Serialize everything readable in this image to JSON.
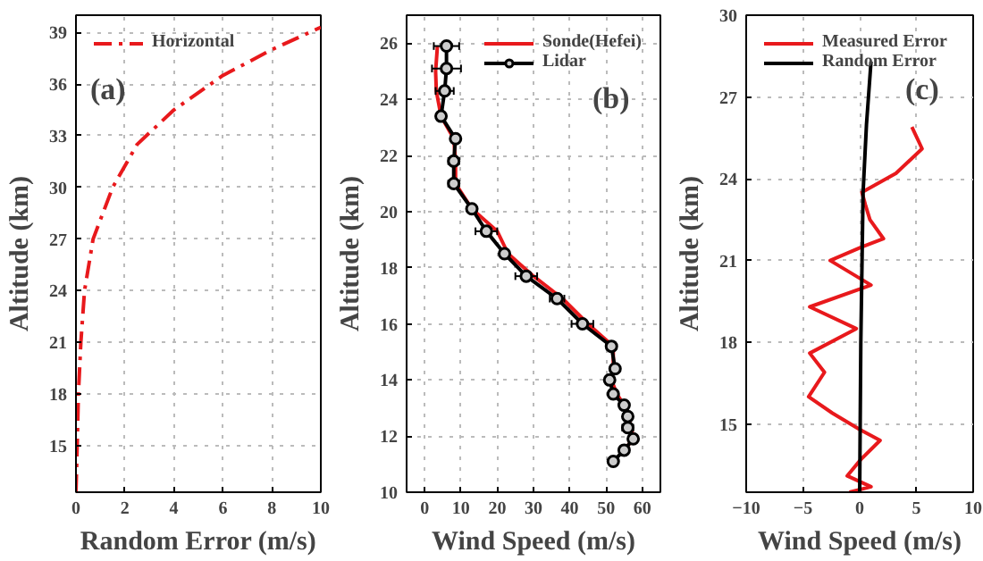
{
  "chart_data": [
    {
      "type": "line",
      "xlabel": "Random Error (m/s)",
      "ylabel": "Altitude (km)",
      "annotations": [
        "(a)"
      ],
      "xlim": [
        0,
        10
      ],
      "ylim": [
        12.3,
        40
      ],
      "xticks": [
        0,
        2,
        4,
        6,
        8,
        10
      ],
      "yticks": [
        15,
        18,
        21,
        24,
        27,
        30,
        33,
        36,
        39
      ],
      "grid": true,
      "legend": "top left",
      "line_style": "dashed",
      "series": [
        {
          "name": "Horizontal",
          "color": "#e8191c",
          "x": [
            0,
            0.05,
            0.1,
            0.2,
            0.35,
            0.7,
            1.5,
            2.5,
            4,
            6,
            8,
            10
          ],
          "values": [
            12.3,
            15,
            18,
            21,
            24,
            27,
            30,
            32.5,
            34.5,
            36.5,
            38,
            39.3
          ]
        }
      ]
    },
    {
      "type": "line",
      "xlabel": "Wind Speed (m/s)",
      "ylabel": "Altitude (km)",
      "annotations": [
        "(b)"
      ],
      "xlim": [
        -5,
        65
      ],
      "ylim": [
        10,
        27
      ],
      "xticks": [
        0,
        10,
        20,
        30,
        40,
        50,
        60
      ],
      "yticks": [
        10,
        12,
        14,
        16,
        18,
        20,
        22,
        24,
        26
      ],
      "grid": true,
      "legend": "top right",
      "series": [
        {
          "name": "Sonde(Hefei)",
          "color": "#e8191c",
          "x": [
            3.5,
            3,
            3.2,
            4.5,
            8,
            8.5,
            8.5,
            13,
            20,
            23,
            30,
            38,
            45,
            52,
            52,
            51.5,
            53,
            55,
            56,
            57,
            57.5,
            55
          ],
          "values": [
            25.9,
            25,
            24.3,
            23.4,
            22.6,
            21.8,
            21,
            20.1,
            19.3,
            18.5,
            17.7,
            16.9,
            16,
            15.2,
            14.4,
            14,
            13.5,
            13.1,
            12.7,
            12.3,
            11.9,
            11.5
          ]
        },
        {
          "name": "Lidar",
          "color": "#000000",
          "marker": "circle",
          "x": [
            6,
            6,
            5.5,
            4.5,
            8.5,
            8,
            8,
            13,
            17,
            22,
            28,
            36.5,
            43.5,
            51.5,
            52.5,
            51,
            52,
            55,
            56,
            56,
            57.5,
            55,
            52
          ],
          "values": [
            25.9,
            25.1,
            24.3,
            23.4,
            22.6,
            21.8,
            21,
            20.1,
            19.3,
            18.5,
            17.7,
            16.9,
            16,
            15.2,
            14.4,
            14,
            13.5,
            13.1,
            12.7,
            12.3,
            11.9,
            11.5,
            11.1
          ],
          "xerrors": [
            3.5,
            4,
            2.5,
            null,
            1,
            1.5,
            1.5,
            null,
            3,
            1,
            3,
            2,
            3,
            1,
            1,
            1,
            null,
            1,
            1,
            1.5,
            1,
            1,
            null
          ]
        }
      ]
    },
    {
      "type": "line",
      "xlabel": "Wind Speed (m/s)",
      "ylabel": "Altitude (km)",
      "annotations": [
        "(c)"
      ],
      "xlim": [
        -10,
        10
      ],
      "ylim": [
        12.5,
        30
      ],
      "xticks": [
        -10,
        -5,
        0,
        5,
        10
      ],
      "yticks": [
        15,
        18,
        21,
        24,
        27,
        30
      ],
      "grid": true,
      "legend": "top left",
      "series": [
        {
          "name": "Measured Error",
          "color": "#e8191c",
          "x": [
            4.6,
            5.5,
            3.2,
            0.2,
            0.5,
            0.9,
            2.1,
            0.2,
            -2.6,
            1.0,
            -4.4,
            -0.3,
            -4.4,
            -3.1,
            -4.5,
            -2.4,
            0,
            1.8,
            0.1,
            -1.1,
            1.0,
            -0.9
          ],
          "values": [
            25.9,
            25.1,
            24.2,
            23.5,
            23.05,
            22.5,
            21.8,
            21.5,
            21.0,
            20.1,
            19.3,
            18.5,
            17.6,
            16.9,
            16.0,
            15.4,
            14.8,
            14.4,
            13.7,
            13.1,
            12.7,
            12.5
          ]
        },
        {
          "name": "Random Error",
          "color": "#000000",
          "x": [
            0,
            0.1,
            0.3,
            0.6,
            1
          ],
          "values": [
            12.5,
            18,
            23.5,
            26,
            28.3
          ]
        }
      ]
    }
  ]
}
